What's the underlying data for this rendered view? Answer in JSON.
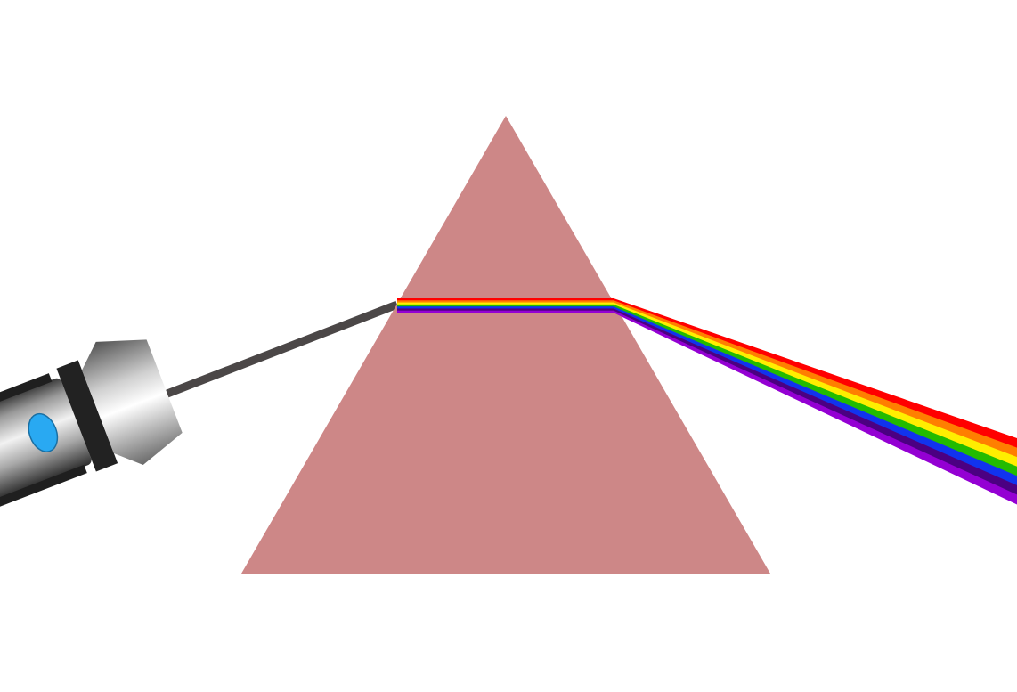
{
  "scene": {
    "background": "#ffffff",
    "prism": {
      "shape": "equilateral-triangle",
      "color": "#cd8787"
    },
    "incident_beam": {
      "color": "#4b4747"
    },
    "light_source": {
      "type": "flashlight",
      "body_color": "#c8c8c8",
      "ring_color": "#222222",
      "button_color": "#29a9f2"
    },
    "spectrum": {
      "order_top_to_bottom": [
        "red",
        "orange",
        "yellow",
        "green",
        "blue",
        "indigo",
        "violet"
      ],
      "colors": [
        "#ff0000",
        "#ff7f00",
        "#ffee00",
        "#22bb00",
        "#1133ee",
        "#4b0082",
        "#9400d3"
      ]
    }
  }
}
